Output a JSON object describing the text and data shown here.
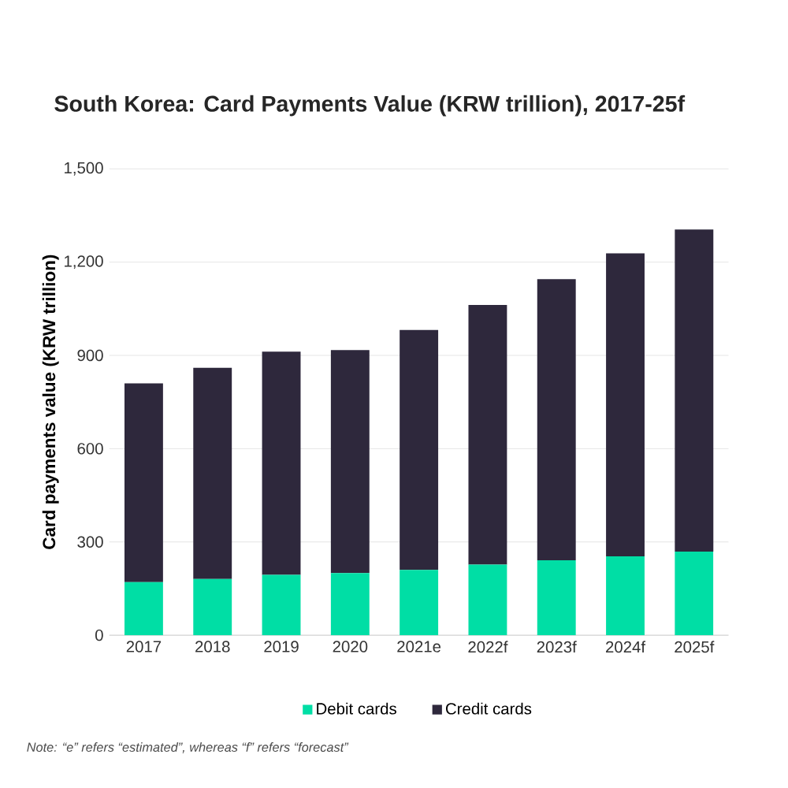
{
  "chart_data": {
    "type": "bar",
    "title": "South Korea: Card Payments Value (KRW trillion), 2017-25f",
    "ylabel": "Card payments value (KRW trillion)",
    "categories": [
      "2017",
      "2018",
      "2019",
      "2020",
      "2021e",
      "2022f",
      "2023f",
      "2024f",
      "2025f"
    ],
    "stacked": true,
    "series": [
      {
        "name": "Debit cards",
        "color": "#00dea5",
        "values": [
          171,
          181,
          194,
          200,
          210,
          227,
          241,
          254,
          269
        ]
      },
      {
        "name": "Credit cards",
        "color": "#2e283c",
        "values": [
          639,
          679,
          718,
          717,
          772,
          835,
          904,
          974,
          1036
        ]
      }
    ],
    "ylim": [
      0,
      1500
    ],
    "yticks": [
      {
        "value": 0,
        "label": "0"
      },
      {
        "value": 300,
        "label": "300"
      },
      {
        "value": 600,
        "label": "600"
      },
      {
        "value": 900,
        "label": "900"
      },
      {
        "value": 1200,
        "label": "1,200"
      },
      {
        "value": 1500,
        "label": "1,500"
      }
    ],
    "grid": "y",
    "legend": "bottom",
    "annotations": [
      "Note: “e” refers “estimated”, whereas “f” refers “forecast”"
    ]
  }
}
